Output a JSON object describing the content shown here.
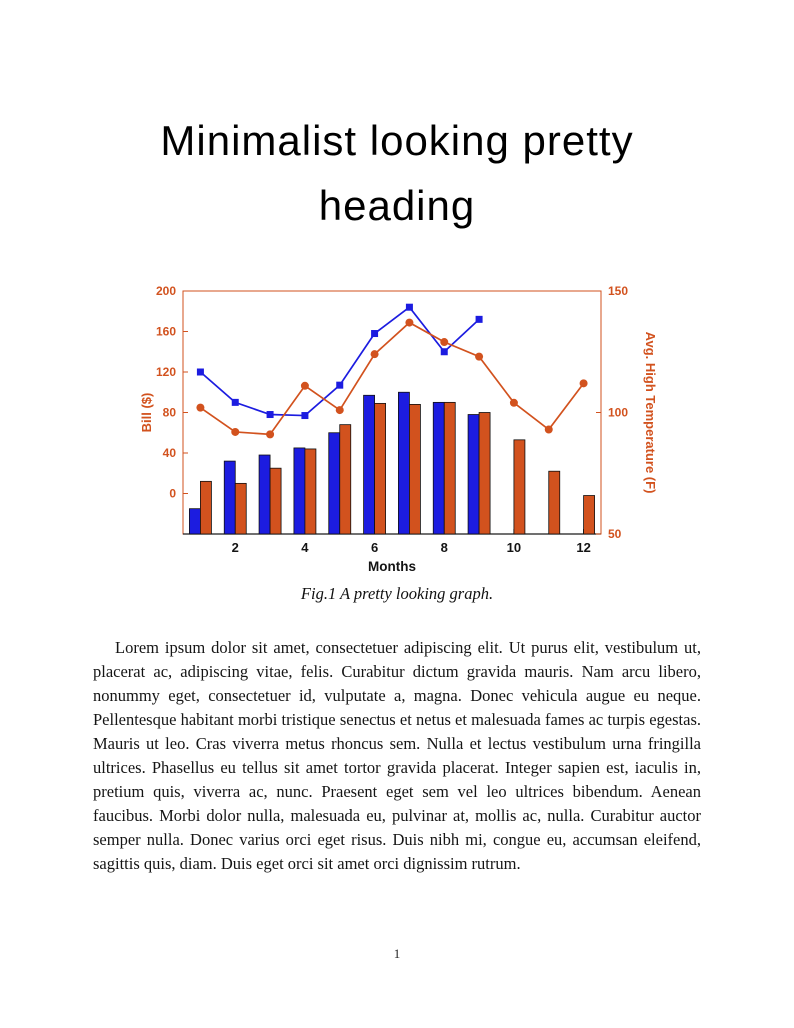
{
  "document": {
    "heading": {
      "line1": "Minimalist looking pretty",
      "line2": "heading"
    },
    "figure": {
      "caption": "Fig.1 A pretty looking graph."
    },
    "body_paragraph": "Lorem ipsum dolor sit amet, consectetuer adipiscing elit. Ut purus elit, vestibulum ut, placerat ac, adipiscing vitae, felis. Curabitur dictum gravida mauris. Nam arcu libero, nonummy eget, consectetuer id, vulputate a, magna. Donec vehicula augue eu neque. Pellentesque habitant morbi tristique senectus et netus et malesuada fames ac turpis egestas. Mauris ut leo. Cras viverra metus rhoncus sem. Nulla et lectus vestibulum urna fringilla ultrices. Phasellus eu tellus sit amet tortor gravida placerat. Integer sapien est, iaculis in, pretium quis, viverra ac, nunc. Praesent eget sem vel leo ultrices bibendum. Aenean faucibus. Morbi dolor nulla, malesuada eu, pulvinar at, mollis ac, nulla. Curabitur auctor semper nulla. Donec varius orci eget risus. Duis nibh mi, congue eu, accumsan eleifend, sagittis quis, diam. Duis eget orci sit amet orci dignissim rutrum.",
    "page_number": "1"
  },
  "chart_data": {
    "type": "combo",
    "title": "",
    "xlabel": "Months",
    "x": [
      1,
      2,
      3,
      4,
      5,
      6,
      7,
      8,
      9,
      10,
      11,
      12
    ],
    "x_ticks": [
      2,
      4,
      6,
      8,
      10,
      12
    ],
    "xlim": [
      0.5,
      12.5
    ],
    "bar_baseline": "axis-bottom",
    "grid": false,
    "legend": "none",
    "left_axis": {
      "label": "Bill ($)",
      "ticks": [
        0,
        40,
        80,
        120,
        160,
        200
      ],
      "lim": [
        -40,
        200
      ],
      "color": "#d2521e"
    },
    "right_axis": {
      "label": "Avg. High Temperature (F)",
      "ticks": [
        50,
        100,
        150
      ],
      "lim": [
        50,
        150
      ],
      "color": "#d2521e"
    },
    "series": [
      {
        "name": "bill-bars-blue",
        "type": "bar",
        "axis": "left",
        "color": "#1c1ce0",
        "values": [
          -15,
          32,
          38,
          45,
          60,
          97,
          100,
          90,
          78,
          null,
          null,
          null
        ]
      },
      {
        "name": "bill-bars-orange",
        "type": "bar",
        "axis": "left",
        "color": "#d2521e",
        "values": [
          12,
          10,
          25,
          44,
          68,
          89,
          88,
          90,
          80,
          53,
          22,
          -2
        ]
      },
      {
        "name": "bill-line-blue",
        "type": "line",
        "marker": "square",
        "axis": "left",
        "color": "#1c1ce0",
        "values": [
          120,
          90,
          78,
          77,
          107,
          158,
          184,
          140,
          172,
          null,
          null,
          null
        ]
      },
      {
        "name": "temperature-line-orange",
        "type": "line",
        "marker": "circle",
        "axis": "right",
        "color": "#d2521e",
        "values": [
          102,
          92,
          91,
          111,
          101,
          124,
          137,
          129,
          123,
          104,
          93,
          112
        ]
      }
    ]
  }
}
